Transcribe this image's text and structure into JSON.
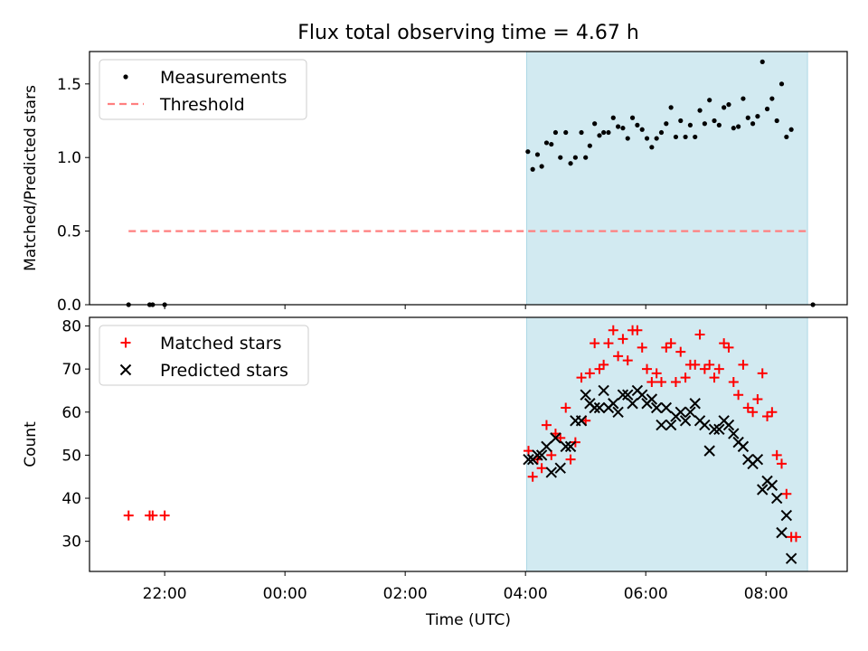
{
  "chart_data": {
    "type": "scatter",
    "title": "Flux total observing time = 4.67 h",
    "xlabel": "Time (UTC)",
    "x_unit": "hours, 00:00 UTC of night's second day = 0",
    "x_ticks": [
      {
        "x": -2,
        "label": "22:00"
      },
      {
        "x": 0,
        "label": "00:00"
      },
      {
        "x": 2,
        "label": "02:00"
      },
      {
        "x": 4,
        "label": "04:00"
      },
      {
        "x": 6,
        "label": "06:00"
      },
      {
        "x": 8,
        "label": "08:00"
      }
    ],
    "xlim": [
      -3.25,
      9.35
    ],
    "observing_window": {
      "start": 4.02,
      "end": 8.69,
      "color": "#add8e6"
    },
    "panels": [
      {
        "ylabel": "Matched/Predicted stars",
        "ylim": [
          0,
          1.72
        ],
        "yticks": [
          0.0,
          0.5,
          1.0,
          1.5
        ],
        "legend": {
          "position": "upper left",
          "entries": [
            "Measurements",
            "Threshold"
          ]
        },
        "series": [
          {
            "name": "Measurements",
            "marker": "dot",
            "color": "#000000",
            "points": [
              [
                -2.6,
                0
              ],
              [
                -2.25,
                0
              ],
              [
                -2.2,
                0
              ],
              [
                -2.0,
                0
              ],
              [
                8.78,
                0
              ],
              [
                4.04,
                1.04
              ],
              [
                4.12,
                0.92
              ],
              [
                4.2,
                1.02
              ],
              [
                4.27,
                0.94
              ],
              [
                4.35,
                1.1
              ],
              [
                4.43,
                1.09
              ],
              [
                4.5,
                1.17
              ],
              [
                4.58,
                1.0
              ],
              [
                4.67,
                1.17
              ],
              [
                4.75,
                0.96
              ],
              [
                4.83,
                1.0
              ],
              [
                4.93,
                1.17
              ],
              [
                5.0,
                1.0
              ],
              [
                5.07,
                1.08
              ],
              [
                5.15,
                1.23
              ],
              [
                5.23,
                1.15
              ],
              [
                5.3,
                1.17
              ],
              [
                5.38,
                1.17
              ],
              [
                5.46,
                1.27
              ],
              [
                5.54,
                1.21
              ],
              [
                5.62,
                1.2
              ],
              [
                5.7,
                1.13
              ],
              [
                5.78,
                1.27
              ],
              [
                5.86,
                1.22
              ],
              [
                5.94,
                1.19
              ],
              [
                6.02,
                1.13
              ],
              [
                6.1,
                1.07
              ],
              [
                6.18,
                1.13
              ],
              [
                6.26,
                1.17
              ],
              [
                6.34,
                1.23
              ],
              [
                6.42,
                1.34
              ],
              [
                6.5,
                1.14
              ],
              [
                6.58,
                1.25
              ],
              [
                6.66,
                1.14
              ],
              [
                6.74,
                1.22
              ],
              [
                6.82,
                1.14
              ],
              [
                6.9,
                1.32
              ],
              [
                6.98,
                1.23
              ],
              [
                7.06,
                1.39
              ],
              [
                7.14,
                1.25
              ],
              [
                7.22,
                1.22
              ],
              [
                7.3,
                1.34
              ],
              [
                7.38,
                1.36
              ],
              [
                7.46,
                1.2
              ],
              [
                7.54,
                1.21
              ],
              [
                7.62,
                1.4
              ],
              [
                7.7,
                1.27
              ],
              [
                7.78,
                1.23
              ],
              [
                7.86,
                1.28
              ],
              [
                7.94,
                1.65
              ],
              [
                8.02,
                1.33
              ],
              [
                8.1,
                1.4
              ],
              [
                8.18,
                1.25
              ],
              [
                8.26,
                1.5
              ],
              [
                8.34,
                1.14
              ],
              [
                8.42,
                1.19
              ]
            ]
          },
          {
            "name": "Threshold",
            "marker": "dashed-line",
            "color": "#ff7f7f",
            "points": [
              [
                -2.6,
                0.5
              ],
              [
                8.69,
                0.5
              ]
            ]
          }
        ]
      },
      {
        "ylabel": "Count",
        "ylim": [
          23,
          82
        ],
        "yticks": [
          30,
          40,
          50,
          60,
          70,
          80
        ],
        "legend": {
          "position": "upper left",
          "entries": [
            "Matched stars",
            "Predicted stars"
          ]
        },
        "series": [
          {
            "name": "Matched stars",
            "marker": "plus",
            "color": "#ff0000",
            "points": [
              [
                -2.6,
                36
              ],
              [
                -2.25,
                36
              ],
              [
                -2.2,
                36
              ],
              [
                -2.0,
                36
              ],
              [
                4.05,
                51
              ],
              [
                4.12,
                45
              ],
              [
                4.2,
                49
              ],
              [
                4.27,
                47
              ],
              [
                4.35,
                57
              ],
              [
                4.43,
                50
              ],
              [
                4.5,
                55
              ],
              [
                4.58,
                54
              ],
              [
                4.67,
                61
              ],
              [
                4.75,
                49
              ],
              [
                4.83,
                53
              ],
              [
                4.93,
                68
              ],
              [
                5.0,
                58
              ],
              [
                5.07,
                69
              ],
              [
                5.15,
                76
              ],
              [
                5.23,
                70
              ],
              [
                5.3,
                71
              ],
              [
                5.38,
                76
              ],
              [
                5.46,
                79
              ],
              [
                5.54,
                73
              ],
              [
                5.62,
                77
              ],
              [
                5.7,
                72
              ],
              [
                5.78,
                79
              ],
              [
                5.86,
                79
              ],
              [
                5.94,
                75
              ],
              [
                6.02,
                70
              ],
              [
                6.1,
                67
              ],
              [
                6.18,
                69
              ],
              [
                6.26,
                67
              ],
              [
                6.34,
                75
              ],
              [
                6.42,
                76
              ],
              [
                6.5,
                67
              ],
              [
                6.58,
                74
              ],
              [
                6.66,
                68
              ],
              [
                6.74,
                71
              ],
              [
                6.82,
                71
              ],
              [
                6.9,
                78
              ],
              [
                6.98,
                70
              ],
              [
                7.06,
                71
              ],
              [
                7.14,
                68
              ],
              [
                7.22,
                70
              ],
              [
                7.3,
                76
              ],
              [
                7.38,
                75
              ],
              [
                7.46,
                67
              ],
              [
                7.54,
                64
              ],
              [
                7.62,
                71
              ],
              [
                7.7,
                61
              ],
              [
                7.78,
                60
              ],
              [
                7.86,
                63
              ],
              [
                7.94,
                69
              ],
              [
                8.02,
                59
              ],
              [
                8.1,
                60
              ],
              [
                8.18,
                50
              ],
              [
                8.26,
                48
              ],
              [
                8.34,
                41
              ],
              [
                8.42,
                31
              ],
              [
                8.5,
                31
              ]
            ]
          },
          {
            "name": "Predicted stars",
            "marker": "x",
            "color": "#000000",
            "points": [
              [
                4.05,
                49
              ],
              [
                4.12,
                49
              ],
              [
                4.2,
                50
              ],
              [
                4.27,
                50
              ],
              [
                4.35,
                52
              ],
              [
                4.43,
                46
              ],
              [
                4.5,
                54
              ],
              [
                4.58,
                47
              ],
              [
                4.67,
                52
              ],
              [
                4.75,
                52
              ],
              [
                4.83,
                58
              ],
              [
                4.93,
                58
              ],
              [
                5.0,
                64
              ],
              [
                5.07,
                62
              ],
              [
                5.15,
                61
              ],
              [
                5.23,
                61
              ],
              [
                5.3,
                65
              ],
              [
                5.38,
                61
              ],
              [
                5.46,
                62
              ],
              [
                5.54,
                60
              ],
              [
                5.62,
                64
              ],
              [
                5.7,
                64
              ],
              [
                5.78,
                62
              ],
              [
                5.86,
                65
              ],
              [
                5.94,
                64
              ],
              [
                6.02,
                62
              ],
              [
                6.1,
                63
              ],
              [
                6.18,
                61
              ],
              [
                6.26,
                57
              ],
              [
                6.34,
                61
              ],
              [
                6.42,
                57
              ],
              [
                6.5,
                59
              ],
              [
                6.58,
                60
              ],
              [
                6.66,
                58
              ],
              [
                6.74,
                60
              ],
              [
                6.82,
                62
              ],
              [
                6.9,
                58
              ],
              [
                6.98,
                57
              ],
              [
                7.06,
                51
              ],
              [
                7.14,
                56
              ],
              [
                7.22,
                56
              ],
              [
                7.3,
                58
              ],
              [
                7.38,
                57
              ],
              [
                7.46,
                55
              ],
              [
                7.54,
                53
              ],
              [
                7.62,
                52
              ],
              [
                7.7,
                49
              ],
              [
                7.78,
                48
              ],
              [
                7.86,
                49
              ],
              [
                7.94,
                42
              ],
              [
                8.02,
                44
              ],
              [
                8.1,
                43
              ],
              [
                8.18,
                40
              ],
              [
                8.26,
                32
              ],
              [
                8.34,
                36
              ],
              [
                8.42,
                26
              ]
            ]
          }
        ]
      }
    ]
  }
}
